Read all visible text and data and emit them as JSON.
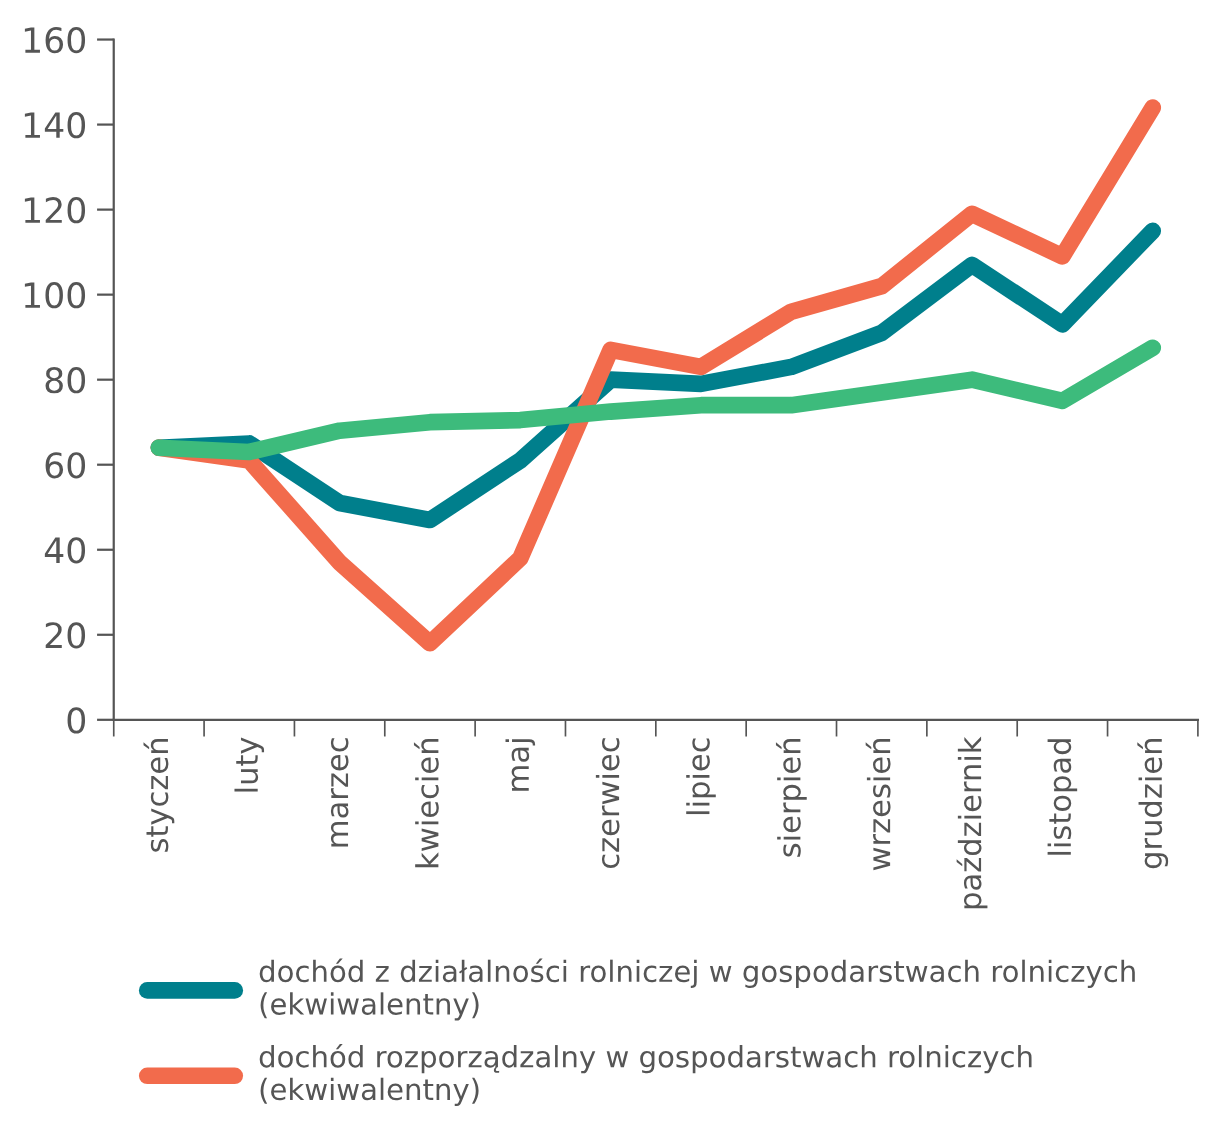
{
  "chart_data": {
    "type": "line",
    "categories": [
      "styczeń",
      "luty",
      "marzec",
      "kwiecień",
      "maj",
      "czerwiec",
      "lipiec",
      "sierpień",
      "wrzesień",
      "październik",
      "listopad",
      "grudzień"
    ],
    "series": [
      {
        "name": "dochód z działalności rolniczej w gospodarstwach rolniczych (ekwiwalentny)",
        "color": "#007f8c",
        "values": [
          64,
          65,
          51,
          47,
          61,
          80,
          79,
          83,
          91,
          107,
          93,
          115
        ]
      },
      {
        "name": "dochód rozporządzalny w gospodarstwach rolniczych (ekwiwalentny)",
        "color": "#f26b4c",
        "values": [
          64,
          61,
          37,
          18,
          38,
          87,
          83,
          96,
          102,
          119,
          109,
          144
        ]
      },
      {
        "color": "#3dbb7c",
        "values": [
          64,
          63,
          68,
          70,
          70.5,
          72.5,
          74,
          74,
          77,
          80,
          75,
          87.5
        ]
      }
    ],
    "ylim": [
      0,
      160
    ],
    "yticks": [
      0,
      20,
      40,
      60,
      80,
      100,
      120,
      140,
      160
    ],
    "grid": false,
    "legend": "bottom",
    "marker": "none",
    "line_style": "solid"
  }
}
